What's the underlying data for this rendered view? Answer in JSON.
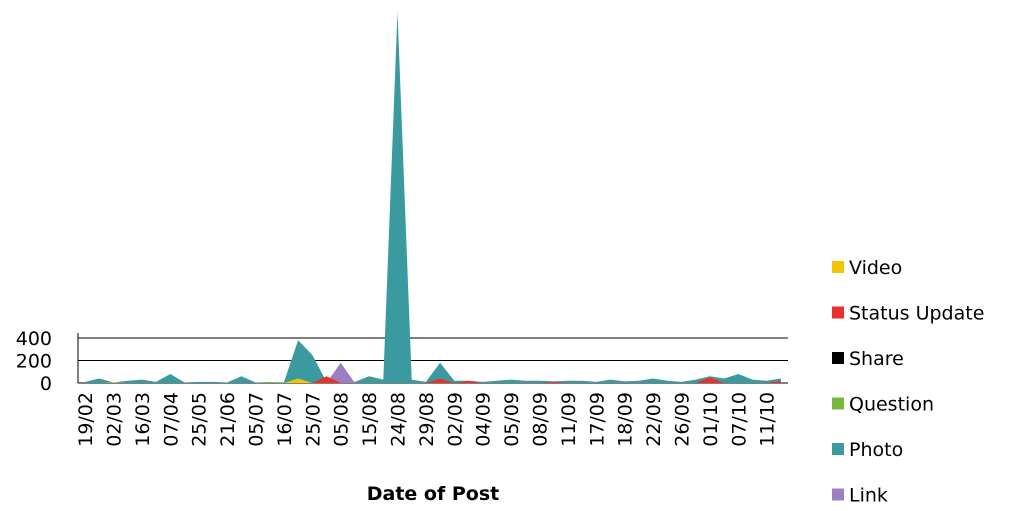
{
  "chart_data": {
    "type": "area",
    "x_label": "Date of Post",
    "categories": [
      "19/02",
      null,
      "02/03",
      null,
      "16/03",
      null,
      "07/04",
      null,
      "25/05",
      null,
      "21/06",
      null,
      "05/07",
      null,
      "16/07",
      null,
      "25/07",
      null,
      "05/08",
      null,
      "15/08",
      null,
      "24/08",
      null,
      "29/08",
      null,
      "02/09",
      null,
      "04/09",
      null,
      "05/09",
      null,
      "08/09",
      null,
      "11/09",
      null,
      "17/09",
      null,
      "18/09",
      null,
      "22/09",
      null,
      "26/09",
      null,
      "01/10",
      null,
      "07/10",
      null,
      "11/10",
      null
    ],
    "series": [
      {
        "name": "Video",
        "color": "#f5c400",
        "values": [
          0,
          0,
          5,
          0,
          0,
          0,
          0,
          0,
          0,
          0,
          0,
          0,
          0,
          5,
          0,
          40,
          0,
          0,
          0,
          0,
          0,
          0,
          0,
          0,
          0,
          0,
          0,
          0,
          0,
          0,
          0,
          0,
          0,
          0,
          0,
          0,
          0,
          0,
          0,
          0,
          0,
          0,
          0,
          0,
          0,
          0,
          0,
          0,
          0,
          0
        ]
      },
      {
        "name": "Status Update",
        "color": "#e8312a",
        "values": [
          0,
          0,
          0,
          0,
          0,
          0,
          0,
          0,
          0,
          0,
          0,
          0,
          0,
          0,
          0,
          0,
          0,
          60,
          0,
          0,
          0,
          0,
          0,
          0,
          0,
          40,
          0,
          20,
          0,
          0,
          0,
          0,
          0,
          10,
          0,
          0,
          0,
          0,
          0,
          0,
          0,
          0,
          0,
          0,
          50,
          0,
          0,
          0,
          0,
          20
        ]
      },
      {
        "name": "Share",
        "color": "#000000",
        "values": [
          0,
          0,
          0,
          0,
          0,
          0,
          0,
          0,
          0,
          0,
          0,
          0,
          0,
          0,
          0,
          0,
          0,
          0,
          0,
          0,
          0,
          0,
          0,
          0,
          0,
          0,
          0,
          0,
          0,
          0,
          0,
          0,
          0,
          0,
          0,
          0,
          0,
          0,
          0,
          0,
          0,
          0,
          0,
          0,
          0,
          0,
          0,
          0,
          0,
          0
        ]
      },
      {
        "name": "Question",
        "color": "#7ab83c",
        "values": [
          0,
          0,
          0,
          0,
          0,
          0,
          0,
          0,
          0,
          0,
          0,
          0,
          0,
          0,
          0,
          0,
          0,
          0,
          0,
          0,
          0,
          0,
          0,
          0,
          0,
          0,
          0,
          0,
          0,
          0,
          0,
          0,
          0,
          0,
          0,
          0,
          0,
          0,
          0,
          0,
          0,
          0,
          0,
          0,
          0,
          0,
          0,
          0,
          0,
          0
        ]
      },
      {
        "name": "Photo",
        "color": "#3a9aa0",
        "values": [
          10,
          40,
          5,
          20,
          30,
          10,
          80,
          5,
          10,
          10,
          5,
          60,
          5,
          10,
          5,
          380,
          250,
          10,
          10,
          10,
          60,
          30,
          3300,
          30,
          10,
          180,
          20,
          20,
          10,
          20,
          30,
          20,
          20,
          15,
          20,
          20,
          10,
          30,
          15,
          20,
          40,
          20,
          10,
          30,
          60,
          40,
          80,
          30,
          20,
          40
        ]
      },
      {
        "name": "Link",
        "color": "#9b7fc0",
        "values": [
          0,
          0,
          0,
          0,
          0,
          0,
          0,
          0,
          0,
          0,
          0,
          0,
          0,
          0,
          0,
          0,
          0,
          0,
          180,
          0,
          0,
          0,
          0,
          0,
          0,
          0,
          0,
          0,
          0,
          0,
          0,
          0,
          0,
          0,
          0,
          0,
          0,
          0,
          0,
          0,
          0,
          0,
          0,
          0,
          0,
          0,
          0,
          0,
          0,
          0
        ]
      }
    ],
    "draw_order": [
      4,
      5,
      1,
      0
    ],
    "ylim": [
      0,
      3400
    ],
    "yticks": [
      0,
      200,
      400
    ],
    "grid": true
  }
}
